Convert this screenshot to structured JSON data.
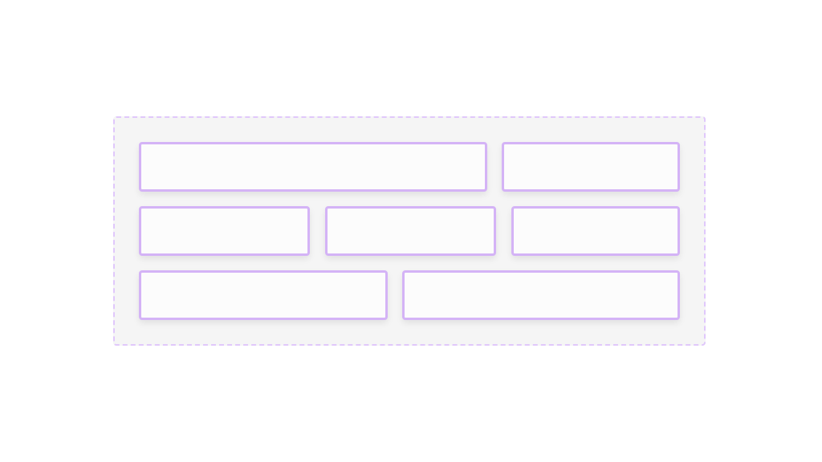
{
  "colors": {
    "container_border": "#e0c8fb",
    "container_background": "#f5f5f5",
    "box_border": "#d4b3f6",
    "box_background": "#fcfcfc"
  }
}
